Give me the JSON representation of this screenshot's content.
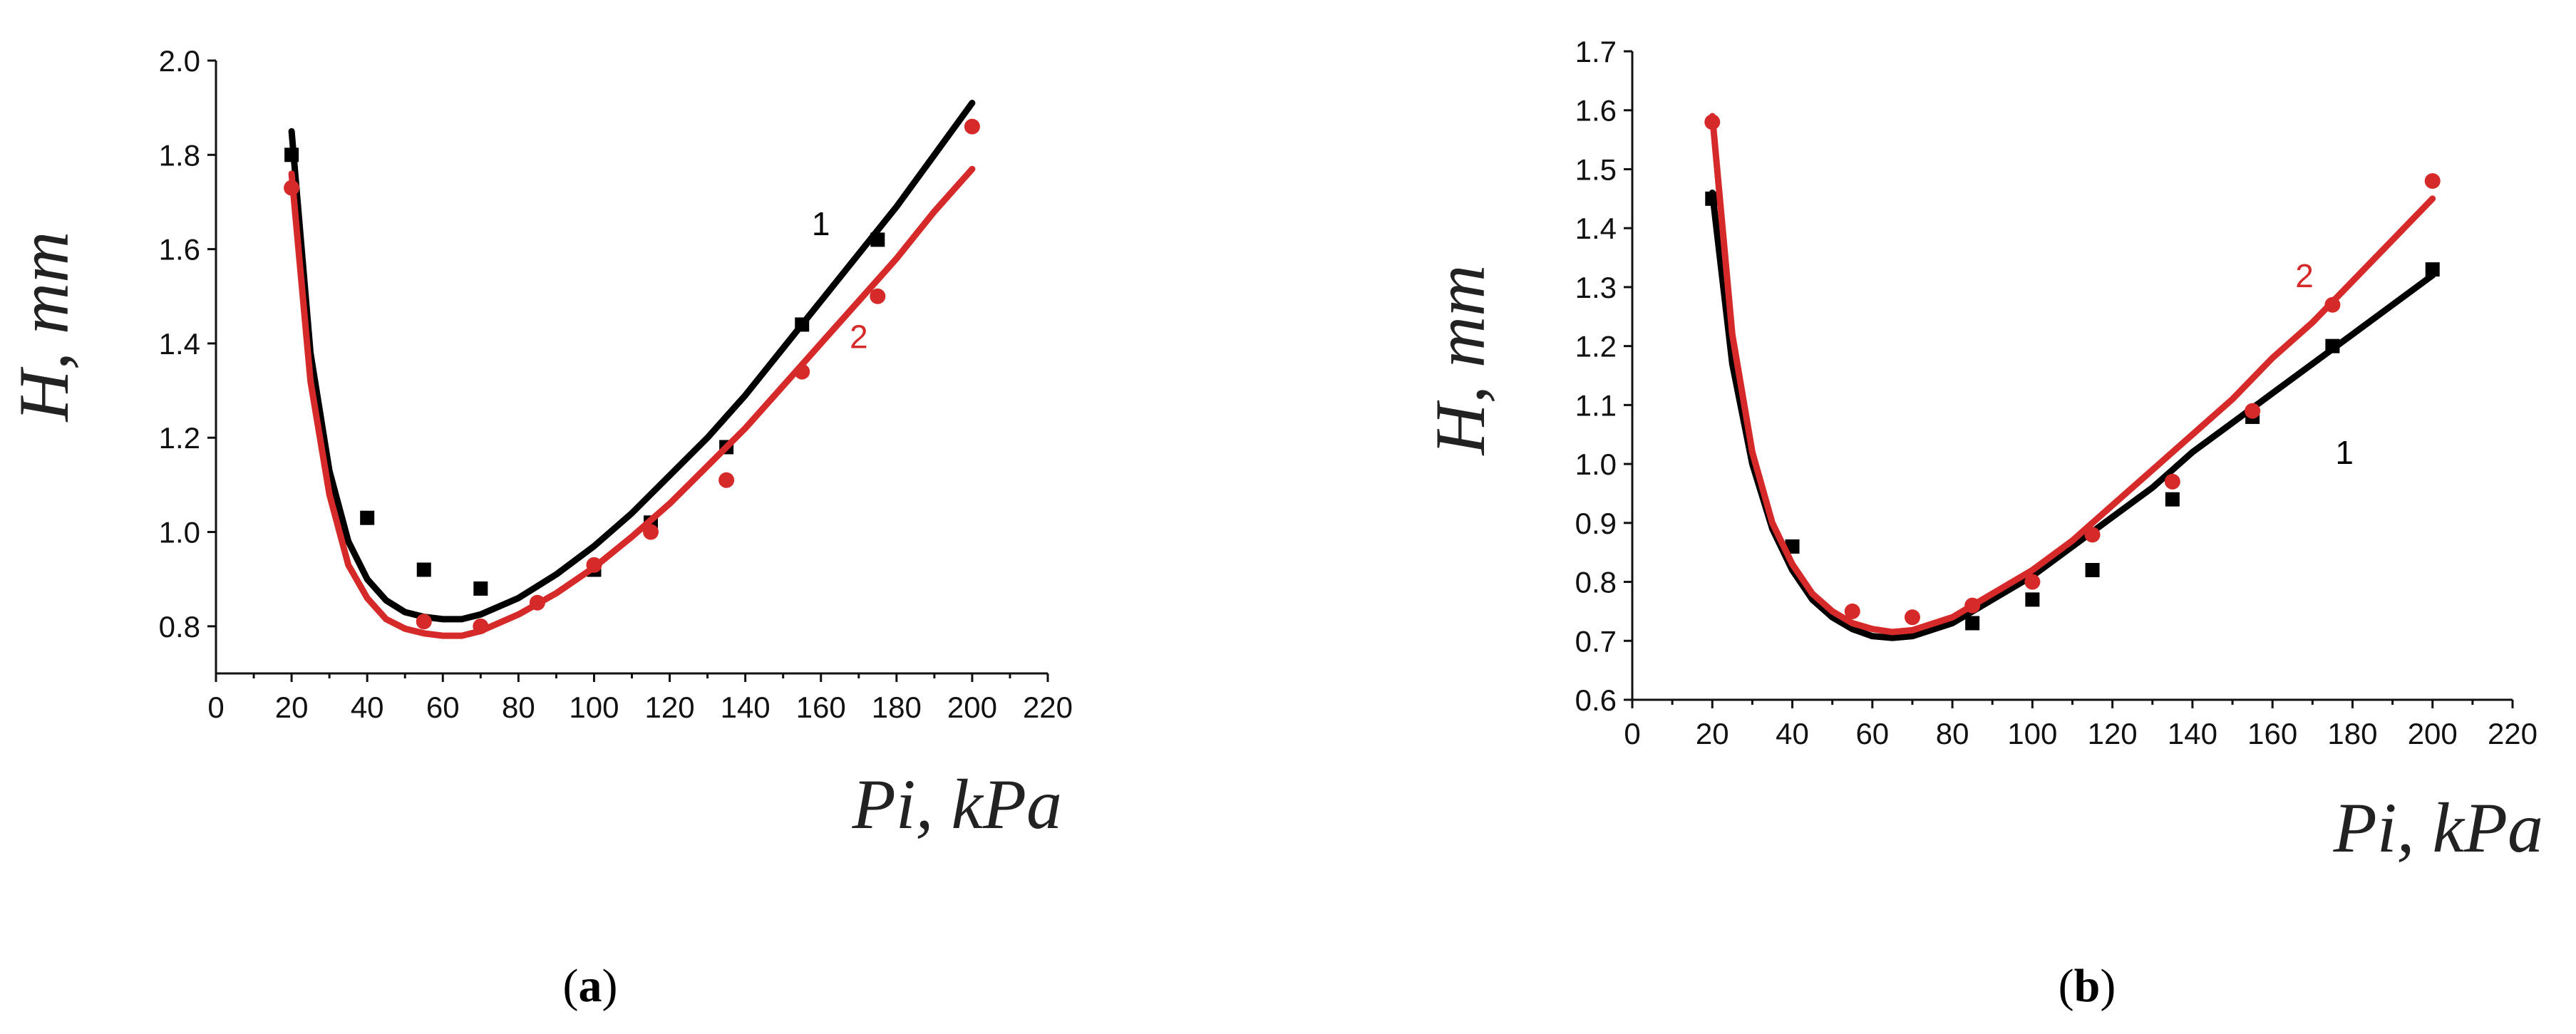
{
  "chart_data": [
    {
      "type": "line",
      "panel_label": "(a)",
      "panel_letter": "a",
      "xlabel": "Pi, kPa",
      "ylabel": "H, mm",
      "xlim": [
        0,
        220
      ],
      "ylim": [
        0.7,
        2.0
      ],
      "xticks": [
        0,
        20,
        40,
        60,
        80,
        100,
        120,
        140,
        160,
        180,
        200,
        220
      ],
      "yticks": [
        0.8,
        1.0,
        1.2,
        1.4,
        1.6,
        1.8,
        2.0
      ],
      "ytick_labels": [
        "0.8",
        "1.0",
        "1.2",
        "1.4",
        "1.6",
        "1.8",
        "2.0"
      ],
      "series": [
        {
          "name": "1",
          "color": "#000000",
          "marker": "square",
          "points": [
            [
              20,
              1.8
            ],
            [
              40,
              1.03
            ],
            [
              55,
              0.92
            ],
            [
              70,
              0.88
            ],
            [
              100,
              0.92
            ],
            [
              115,
              1.02
            ],
            [
              135,
              1.18
            ],
            [
              155,
              1.44
            ],
            [
              175,
              1.62
            ]
          ],
          "fit": [
            [
              20,
              1.85
            ],
            [
              25,
              1.38
            ],
            [
              30,
              1.13
            ],
            [
              35,
              0.98
            ],
            [
              40,
              0.9
            ],
            [
              45,
              0.855
            ],
            [
              50,
              0.83
            ],
            [
              55,
              0.82
            ],
            [
              60,
              0.815
            ],
            [
              65,
              0.815
            ],
            [
              70,
              0.825
            ],
            [
              80,
              0.86
            ],
            [
              90,
              0.91
            ],
            [
              100,
              0.97
            ],
            [
              110,
              1.04
            ],
            [
              120,
              1.12
            ],
            [
              130,
              1.2
            ],
            [
              140,
              1.29
            ],
            [
              150,
              1.39
            ],
            [
              160,
              1.49
            ],
            [
              170,
              1.59
            ],
            [
              180,
              1.69
            ],
            [
              190,
              1.8
            ],
            [
              200,
              1.91
            ]
          ],
          "label_x": 160,
          "label_y": 1.63
        },
        {
          "name": "2",
          "color": "#d62a2a",
          "marker": "circle",
          "points": [
            [
              20,
              1.73
            ],
            [
              55,
              0.81
            ],
            [
              70,
              0.8
            ],
            [
              85,
              0.85
            ],
            [
              100,
              0.93
            ],
            [
              115,
              1.0
            ],
            [
              135,
              1.11
            ],
            [
              155,
              1.34
            ],
            [
              175,
              1.5
            ],
            [
              200,
              1.86
            ]
          ],
          "fit": [
            [
              20,
              1.76
            ],
            [
              25,
              1.32
            ],
            [
              30,
              1.08
            ],
            [
              35,
              0.93
            ],
            [
              40,
              0.86
            ],
            [
              45,
              0.815
            ],
            [
              50,
              0.795
            ],
            [
              55,
              0.785
            ],
            [
              60,
              0.78
            ],
            [
              65,
              0.78
            ],
            [
              70,
              0.79
            ],
            [
              80,
              0.825
            ],
            [
              90,
              0.87
            ],
            [
              100,
              0.925
            ],
            [
              110,
              0.99
            ],
            [
              120,
              1.06
            ],
            [
              130,
              1.14
            ],
            [
              140,
              1.22
            ],
            [
              150,
              1.31
            ],
            [
              160,
              1.4
            ],
            [
              170,
              1.49
            ],
            [
              180,
              1.58
            ],
            [
              190,
              1.68
            ],
            [
              200,
              1.77
            ]
          ],
          "label_x": 170,
          "label_y": 1.39
        }
      ]
    },
    {
      "type": "line",
      "panel_label": "(b)",
      "panel_letter": "b",
      "xlabel": "Pi, kPa",
      "ylabel": "H, mm",
      "xlim": [
        0,
        220
      ],
      "ylim": [
        0.6,
        1.7
      ],
      "xticks": [
        0,
        20,
        40,
        60,
        80,
        100,
        120,
        140,
        160,
        180,
        200,
        220
      ],
      "yticks": [
        0.6,
        0.7,
        0.8,
        0.9,
        1.0,
        1.1,
        1.2,
        1.3,
        1.4,
        1.5,
        1.6,
        1.7
      ],
      "ytick_labels": [
        "0.6",
        "0.7",
        "0.8",
        "0.9",
        "1.0",
        "1.1",
        "1.2",
        "1.3",
        "1.4",
        "1.5",
        "1.6",
        "1.7"
      ],
      "series": [
        {
          "name": "1",
          "color": "#000000",
          "marker": "square",
          "points": [
            [
              20,
              1.45
            ],
            [
              40,
              0.86
            ],
            [
              85,
              0.73
            ],
            [
              100,
              0.77
            ],
            [
              115,
              0.82
            ],
            [
              135,
              0.94
            ],
            [
              155,
              1.08
            ],
            [
              175,
              1.2
            ],
            [
              200,
              1.33
            ]
          ],
          "fit": [
            [
              20,
              1.46
            ],
            [
              25,
              1.17
            ],
            [
              30,
              1.0
            ],
            [
              35,
              0.89
            ],
            [
              40,
              0.82
            ],
            [
              45,
              0.77
            ],
            [
              50,
              0.74
            ],
            [
              55,
              0.72
            ],
            [
              60,
              0.708
            ],
            [
              65,
              0.705
            ],
            [
              70,
              0.708
            ],
            [
              80,
              0.73
            ],
            [
              90,
              0.77
            ],
            [
              100,
              0.81
            ],
            [
              110,
              0.86
            ],
            [
              120,
              0.91
            ],
            [
              130,
              0.96
            ],
            [
              140,
              1.02
            ],
            [
              150,
              1.07
            ],
            [
              160,
              1.12
            ],
            [
              170,
              1.17
            ],
            [
              180,
              1.22
            ],
            [
              190,
              1.27
            ],
            [
              200,
              1.32
            ]
          ],
          "label_x": 178,
          "label_y": 1.0
        },
        {
          "name": "2",
          "color": "#d62a2a",
          "marker": "circle",
          "points": [
            [
              20,
              1.58
            ],
            [
              55,
              0.75
            ],
            [
              70,
              0.74
            ],
            [
              85,
              0.76
            ],
            [
              100,
              0.8
            ],
            [
              115,
              0.88
            ],
            [
              135,
              0.97
            ],
            [
              155,
              1.09
            ],
            [
              175,
              1.27
            ],
            [
              200,
              1.48
            ]
          ],
          "fit": [
            [
              20,
              1.59
            ],
            [
              25,
              1.22
            ],
            [
              30,
              1.02
            ],
            [
              35,
              0.9
            ],
            [
              40,
              0.83
            ],
            [
              45,
              0.78
            ],
            [
              50,
              0.75
            ],
            [
              55,
              0.73
            ],
            [
              60,
              0.72
            ],
            [
              65,
              0.715
            ],
            [
              70,
              0.718
            ],
            [
              80,
              0.74
            ],
            [
              90,
              0.78
            ],
            [
              100,
              0.82
            ],
            [
              110,
              0.87
            ],
            [
              120,
              0.93
            ],
            [
              130,
              0.99
            ],
            [
              140,
              1.05
            ],
            [
              150,
              1.11
            ],
            [
              160,
              1.18
            ],
            [
              170,
              1.24
            ],
            [
              180,
              1.31
            ],
            [
              190,
              1.38
            ],
            [
              200,
              1.45
            ]
          ],
          "label_x": 168,
          "label_y": 1.3
        }
      ]
    }
  ]
}
